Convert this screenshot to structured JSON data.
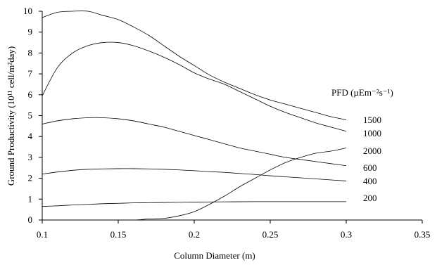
{
  "chart_data": {
    "type": "line",
    "title": "",
    "xlabel": "Column Diameter (m)",
    "ylabel": "Ground Productivity (10¹¹ cell/m²day)",
    "xlim": [
      0.1,
      0.35
    ],
    "ylim": [
      0,
      10
    ],
    "x_ticks": [
      "0.1",
      "0.15",
      "0.2",
      "0.25",
      "0.3",
      "0.35"
    ],
    "y_ticks": [
      "0",
      "1",
      "2",
      "3",
      "4",
      "5",
      "6",
      "7",
      "8",
      "9",
      "10"
    ],
    "legend_title": "PFD (µEm⁻²s⁻¹)",
    "grid": false,
    "series": [
      {
        "name": "1500",
        "x": [
          0.1,
          0.11,
          0.12,
          0.13,
          0.14,
          0.15,
          0.16,
          0.17,
          0.18,
          0.19,
          0.2,
          0.21,
          0.22,
          0.23,
          0.24,
          0.25,
          0.26,
          0.27,
          0.28,
          0.29,
          0.3
        ],
        "y": [
          9.7,
          9.95,
          10.0,
          10.0,
          9.8,
          9.6,
          9.25,
          8.85,
          8.35,
          7.85,
          7.4,
          6.95,
          6.6,
          6.3,
          6.0,
          5.75,
          5.55,
          5.35,
          5.15,
          4.95,
          4.8
        ]
      },
      {
        "name": "1000",
        "x": [
          0.1,
          0.11,
          0.12,
          0.13,
          0.14,
          0.15,
          0.16,
          0.17,
          0.18,
          0.19,
          0.2,
          0.21,
          0.22,
          0.23,
          0.24,
          0.25,
          0.26,
          0.27,
          0.28,
          0.29,
          0.3
        ],
        "y": [
          5.95,
          7.3,
          8.0,
          8.35,
          8.5,
          8.5,
          8.35,
          8.1,
          7.8,
          7.45,
          7.05,
          6.75,
          6.5,
          6.15,
          5.8,
          5.45,
          5.15,
          4.9,
          4.65,
          4.45,
          4.25
        ]
      },
      {
        "name": "2000",
        "x": [
          0.145,
          0.16,
          0.17,
          0.18,
          0.19,
          0.2,
          0.21,
          0.22,
          0.23,
          0.24,
          0.25,
          0.26,
          0.27,
          0.28,
          0.29,
          0.3
        ],
        "y": [
          0.0,
          0.0,
          0.05,
          0.08,
          0.2,
          0.4,
          0.75,
          1.15,
          1.6,
          2.0,
          2.4,
          2.75,
          3.0,
          3.2,
          3.3,
          3.45
        ]
      },
      {
        "name": "600",
        "x": [
          0.1,
          0.11,
          0.12,
          0.13,
          0.14,
          0.15,
          0.16,
          0.17,
          0.18,
          0.19,
          0.2,
          0.21,
          0.22,
          0.23,
          0.24,
          0.25,
          0.26,
          0.27,
          0.28,
          0.29,
          0.3
        ],
        "y": [
          4.6,
          4.75,
          4.85,
          4.9,
          4.9,
          4.85,
          4.75,
          4.6,
          4.45,
          4.25,
          4.05,
          3.85,
          3.65,
          3.45,
          3.3,
          3.15,
          3.0,
          2.9,
          2.8,
          2.7,
          2.6
        ]
      },
      {
        "name": "400",
        "x": [
          0.1,
          0.11,
          0.12,
          0.13,
          0.14,
          0.15,
          0.16,
          0.17,
          0.18,
          0.19,
          0.2,
          0.21,
          0.22,
          0.23,
          0.24,
          0.25,
          0.26,
          0.27,
          0.28,
          0.29,
          0.3
        ],
        "y": [
          2.2,
          2.3,
          2.38,
          2.43,
          2.45,
          2.46,
          2.46,
          2.45,
          2.43,
          2.4,
          2.36,
          2.32,
          2.28,
          2.23,
          2.18,
          2.12,
          2.07,
          2.02,
          1.97,
          1.92,
          1.87
        ]
      },
      {
        "name": "200",
        "x": [
          0.1,
          0.11,
          0.12,
          0.13,
          0.14,
          0.15,
          0.16,
          0.17,
          0.18,
          0.19,
          0.2,
          0.22,
          0.24,
          0.26,
          0.28,
          0.3
        ],
        "y": [
          0.65,
          0.68,
          0.72,
          0.75,
          0.78,
          0.8,
          0.82,
          0.83,
          0.84,
          0.85,
          0.86,
          0.87,
          0.88,
          0.88,
          0.88,
          0.88
        ]
      }
    ]
  }
}
